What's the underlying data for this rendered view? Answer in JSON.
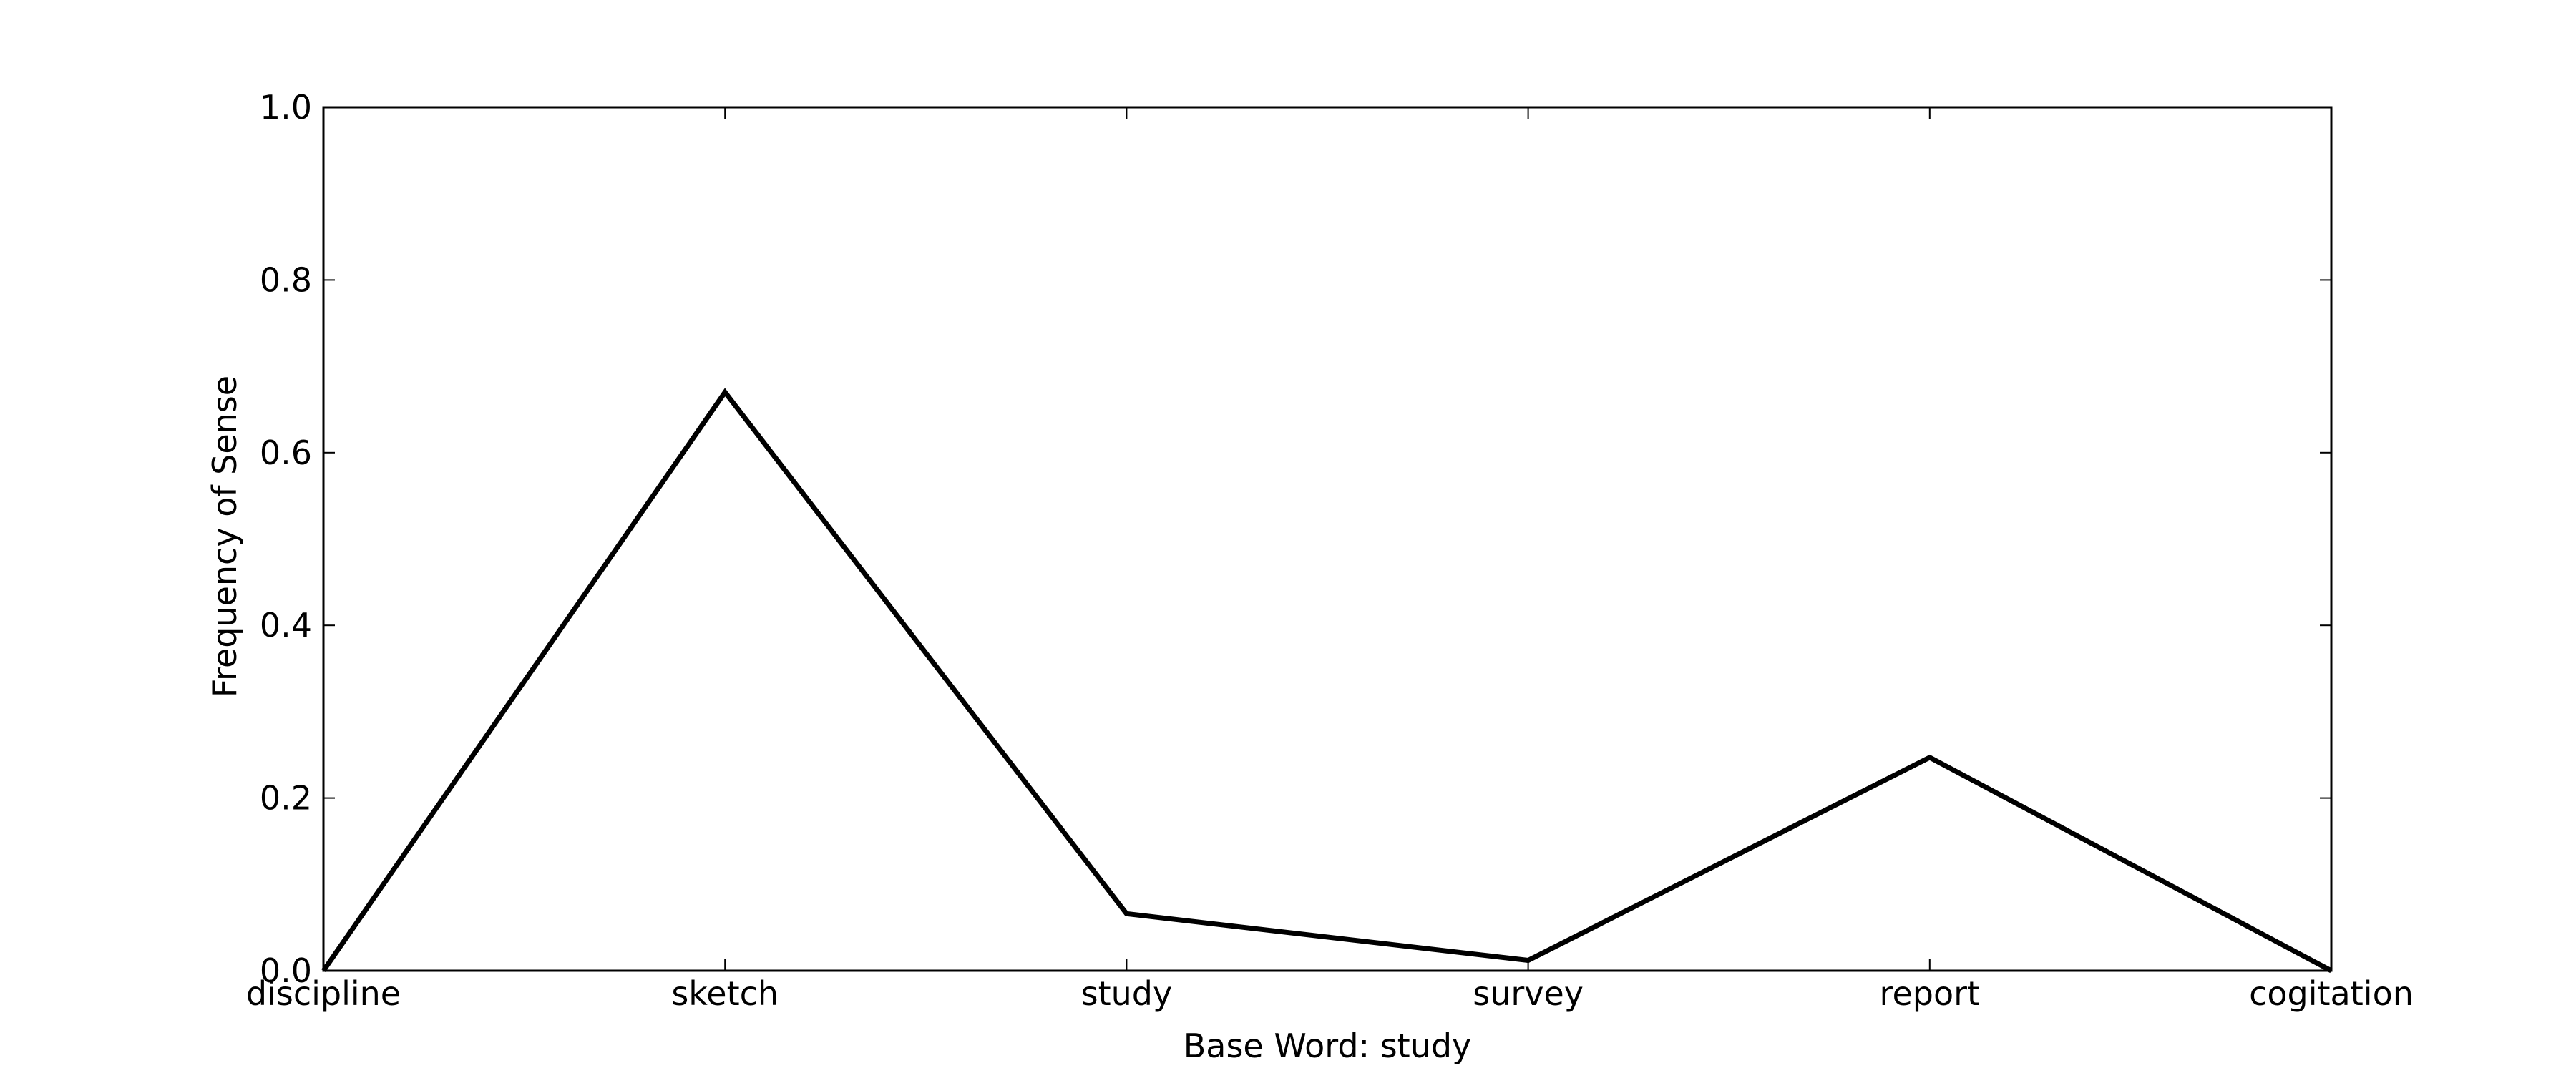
{
  "chart_data": {
    "type": "line",
    "categories": [
      "discipline",
      "sketch",
      "study",
      "survey",
      "report",
      "cogitation"
    ],
    "series": [
      {
        "values": [
          0.0,
          0.67,
          0.066,
          0.012,
          0.247,
          0.0
        ]
      }
    ],
    "xlabel": "Base Word: study",
    "ylabel": "Frequency of Sense",
    "ylim": [
      0,
      1.0
    ],
    "yticks": [
      "0.0",
      "0.2",
      "0.4",
      "0.6",
      "0.8",
      "1.0"
    ],
    "grid": false,
    "line_color": "#000000"
  }
}
